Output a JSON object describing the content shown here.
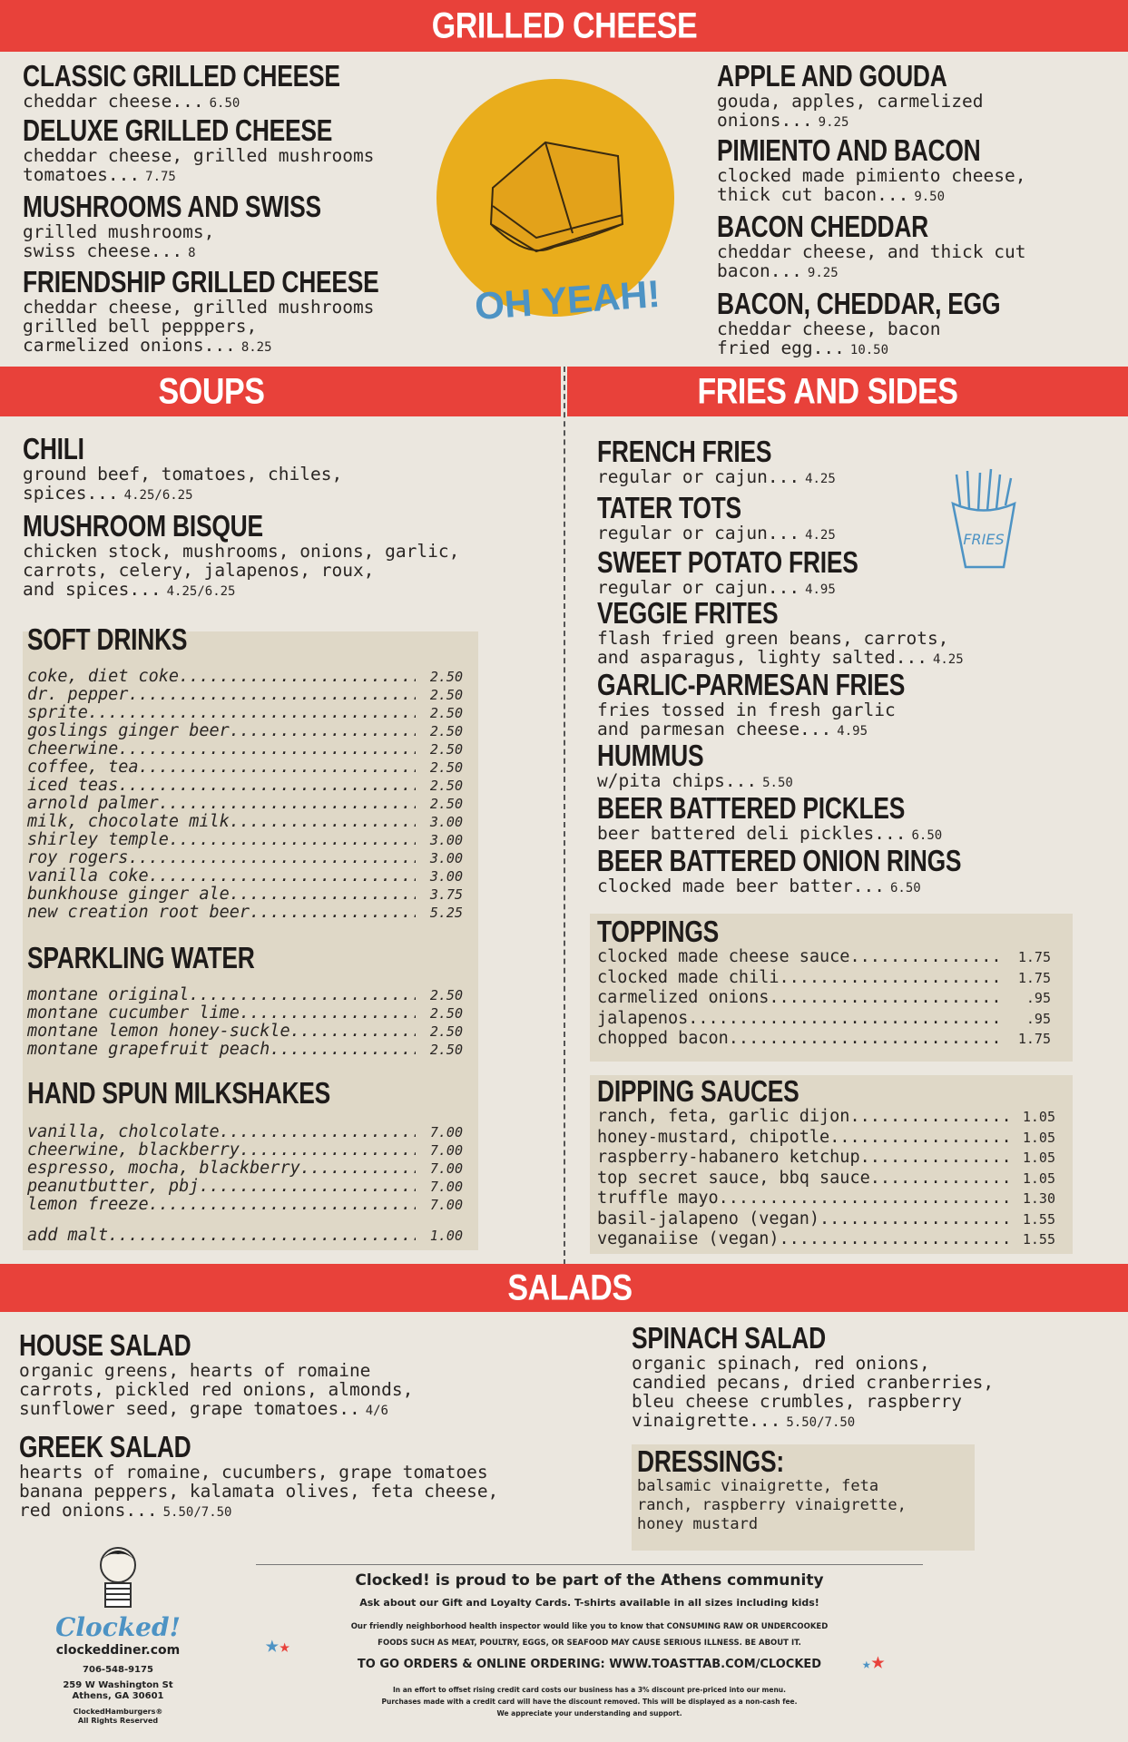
{
  "colors": {
    "banner": "#e8413a",
    "background": "#ebe7df",
    "box": "#dfd8c7",
    "badge_yellow": "#e9ad1c",
    "accent_blue": "#4d93c4"
  },
  "grilled": {
    "title": "GRILLED CHEESE",
    "badge_text": "OH YEAH!",
    "left": [
      {
        "name": "CLASSIC GRILLED CHEESE",
        "desc": "cheddar cheese...",
        "price": "6.50"
      },
      {
        "name": "DELUXE GRILLED CHEESE",
        "desc": "cheddar cheese, grilled mushrooms\ntomatoes...",
        "price": "7.75"
      },
      {
        "name": "MUSHROOMS AND SWISS",
        "desc": "grilled mushrooms,\nswiss cheese...",
        "price": "8"
      },
      {
        "name": "FRIENDSHIP GRILLED CHEESE",
        "desc": "cheddar cheese, grilled mushrooms\ngrilled bell pepppers,\ncarmelized onions...",
        "price": "8.25"
      }
    ],
    "right": [
      {
        "name": "APPLE AND GOUDA",
        "desc": "gouda, apples, carmelized\nonions...",
        "price": "9.25"
      },
      {
        "name": "PIMIENTO AND BACON",
        "desc": "clocked made pimiento cheese,\nthick cut bacon...",
        "price": "9.50"
      },
      {
        "name": "BACON CHEDDAR",
        "desc": "cheddar cheese, and thick cut\nbacon...",
        "price": "9.25"
      },
      {
        "name": "BACON, CHEDDAR, EGG",
        "desc": "cheddar cheese, bacon\nfried egg...",
        "price": "10.50"
      }
    ]
  },
  "soups": {
    "title": "SOUPS",
    "items": [
      {
        "name": "CHILI",
        "desc": "ground beef, tomatoes, chiles,\nspices...",
        "price": "4.25/6.25"
      },
      {
        "name": "MUSHROOM BISQUE",
        "desc": "chicken stock, mushrooms, onions, garlic,\ncarrots, celery, jalapenos, roux,\nand spices...",
        "price": "4.25/6.25"
      }
    ]
  },
  "drinks": {
    "soft": {
      "title": "SOFT DRINKS",
      "items": [
        [
          "coke, diet coke",
          "2.50"
        ],
        [
          "dr. pepper",
          "2.50"
        ],
        [
          "sprite",
          "2.50"
        ],
        [
          "goslings ginger beer",
          "2.50"
        ],
        [
          "cheerwine",
          "2.50"
        ],
        [
          "coffee, tea",
          "2.50"
        ],
        [
          "iced teas",
          "2.50"
        ],
        [
          "arnold palmer",
          "2.50"
        ],
        [
          "milk, chocolate milk",
          "3.00"
        ],
        [
          "shirley temple",
          "3.00"
        ],
        [
          "roy rogers",
          "3.00"
        ],
        [
          "vanilla coke",
          "3.00"
        ],
        [
          "bunkhouse ginger ale",
          "3.75"
        ],
        [
          "new creation root beer",
          "5.25"
        ]
      ]
    },
    "sparkling": {
      "title": "SPARKLING WATER",
      "items": [
        [
          "montane original",
          "2.50"
        ],
        [
          "montane cucumber lime",
          "2.50"
        ],
        [
          "montane lemon honey-suckle",
          "2.50"
        ],
        [
          "montane grapefruit peach",
          "2.50"
        ]
      ]
    },
    "milkshakes": {
      "title": "HAND SPUN MILKSHAKES",
      "items": [
        [
          "vanilla, cholcolate",
          "7.00"
        ],
        [
          "cheerwine, blackberry",
          "7.00"
        ],
        [
          "espresso, mocha, blackberry",
          "7.00"
        ],
        [
          "peanutbutter, pbj",
          "7.00"
        ],
        [
          "lemon freeze",
          "7.00"
        ]
      ],
      "extra": [
        "add malt",
        "1.00"
      ]
    }
  },
  "fries": {
    "title": "FRIES AND SIDES",
    "icon_label": "FRIES",
    "items": [
      {
        "name": "FRENCH FRIES",
        "desc": "regular or cajun...",
        "price": "4.25"
      },
      {
        "name": "TATER TOTS",
        "desc": "regular or cajun...",
        "price": "4.25"
      },
      {
        "name": "SWEET POTATO FRIES",
        "desc": "regular or cajun...",
        "price": "4.95"
      },
      {
        "name": "VEGGIE FRITES",
        "desc": "flash fried green beans, carrots,\nand asparagus, lighty salted...",
        "price": "4.25"
      },
      {
        "name": "GARLIC-PARMESAN FRIES",
        "desc": "fries tossed in fresh garlic\nand parmesan cheese...",
        "price": "4.95"
      },
      {
        "name": "HUMMUS",
        "desc": "w/pita chips...",
        "price": "5.50"
      },
      {
        "name": "BEER BATTERED PICKLES",
        "desc": "beer battered deli pickles...",
        "price": "6.50"
      },
      {
        "name": "BEER BATTERED ONION RINGS",
        "desc": "clocked made beer batter...",
        "price": "6.50"
      }
    ]
  },
  "toppings": {
    "title": "TOPPINGS",
    "items": [
      [
        "clocked made cheese sauce",
        "1.75"
      ],
      [
        "clocked made chili",
        "1.75"
      ],
      [
        "carmelized onions",
        ".95"
      ],
      [
        "jalapenos",
        ".95"
      ],
      [
        "chopped bacon",
        "1.75"
      ]
    ]
  },
  "sauces": {
    "title": "DIPPING SAUCES",
    "items": [
      [
        "ranch, feta, garlic dijon",
        "1.05"
      ],
      [
        "honey-mustard, chipotle",
        "1.05"
      ],
      [
        "raspberry-habanero ketchup",
        "1.05"
      ],
      [
        "top secret sauce, bbq sauce",
        "1.05"
      ],
      [
        "truffle mayo",
        "1.30"
      ],
      [
        "basil-jalapeno (vegan)",
        "1.55"
      ],
      [
        "veganaiise (vegan)",
        "1.55"
      ]
    ]
  },
  "salads": {
    "title": "SALADS",
    "items": [
      {
        "name": "HOUSE SALAD",
        "desc": "organic greens, hearts of romaine\ncarrots, pickled red onions, almonds,\nsunflower seed, grape tomatoes..",
        "price": "4/6"
      },
      {
        "name": "GREEK  SALAD",
        "desc": "hearts of romaine, cucumbers, grape tomatoes\nbanana peppers, kalamata olives, feta cheese,\nred onions...",
        "price": "5.50/7.50"
      },
      {
        "name": "SPINACH  SALAD",
        "desc": "organic spinach, red onions,\ncandied pecans, dried cranberries,\nbleu cheese crumbles, raspberry\nvinaigrette...",
        "price": "5.50/7.50"
      }
    ],
    "dressings": {
      "title": "DRESSINGS:",
      "text": "balsamic vinaigrette, feta\nranch, raspberry vinaigrette,\nhoney mustard"
    }
  },
  "footer": {
    "logo": "Clocked!",
    "website": "clockeddiner.com",
    "phone": "706-548-9175",
    "address": "259 W Washington St\nAthens, GA 30601",
    "rights": "ClockedHamburgers®\nAll Rights Reserved",
    "headline": "Clocked! is proud to be part of the Athens community",
    "cards": "Ask about our Gift and Loyalty Cards. T-shirts available in all sizes including kids!",
    "health": "Our friendly neighborhood health inspector would like you to know that CONSUMING RAW OR UNDERCOOKED\nFOODS SUCH AS MEAT, POULTRY, EGGS, OR SEAFOOD MAY CAUSE SERIOUS ILLNESS. BE ABOUT IT.",
    "ordering": "TO GO ORDERS & ONLINE ORDERING: WWW.TOASTTAB.COM/CLOCKED",
    "fee": "In an effort to offset rising credit card costs our business has a 3% discount pre-priced into our menu.\nPurchases made with a credit card will have the discount removed. This will be displayed as a non-cash fee.\nWe appreciate your understanding and support."
  }
}
